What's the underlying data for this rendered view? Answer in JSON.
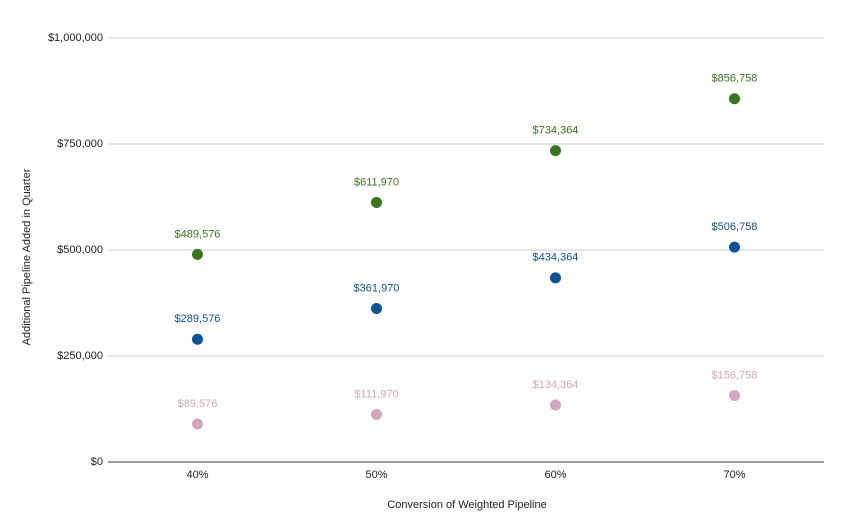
{
  "chart_data": {
    "type": "scatter",
    "x_label": "Conversion of Weighted Pipeline",
    "y_label": "Additional Pipeline Added in Quarter",
    "categories": [
      "40%",
      "50%",
      "60%",
      "70%"
    ],
    "series": [
      {
        "color": "#38761d",
        "values": [
          489576,
          611970,
          734364,
          856758
        ],
        "value_labels": [
          "$489,576",
          "$611,970",
          "$734,364",
          "$856,758"
        ]
      },
      {
        "color": "#0b5394",
        "values": [
          289576,
          361970,
          434364,
          506758
        ],
        "value_labels": [
          "$289,576",
          "$361,970",
          "$434,364",
          "$506,758"
        ]
      },
      {
        "color": "#d5a6bd",
        "values": [
          89576,
          111970,
          134364,
          156758
        ],
        "value_labels": [
          "$89,576",
          "$111,970",
          "$134,364",
          "$156,758"
        ]
      }
    ],
    "ylim": [
      0,
      1000000
    ],
    "yticks": [
      {
        "value": 0,
        "label": "$0"
      },
      {
        "value": 250000,
        "label": "$250,000"
      },
      {
        "value": 500000,
        "label": "$500,000"
      },
      {
        "value": 750000,
        "label": "$750,000"
      },
      {
        "value": 1000000,
        "label": "$1,000,000"
      }
    ],
    "grid": true
  }
}
